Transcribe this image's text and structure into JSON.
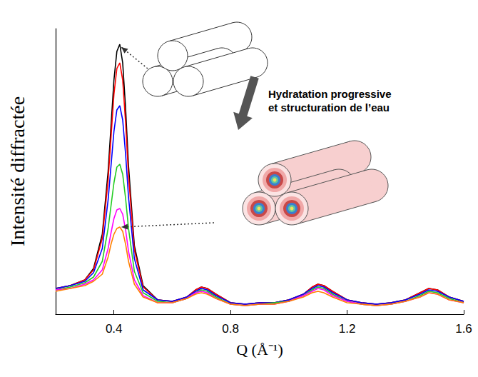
{
  "chart_data": {
    "type": "line",
    "x_label": "Q (Å⁻¹)",
    "y_label": "Intensité diffractée",
    "annotations": [
      "Hydratation progressive et structuration de l’eau"
    ],
    "x": [
      0.2,
      0.25,
      0.3,
      0.33,
      0.36,
      0.38,
      0.39,
      0.4,
      0.41,
      0.42,
      0.43,
      0.44,
      0.45,
      0.47,
      0.5,
      0.55,
      0.6,
      0.65,
      0.68,
      0.7,
      0.72,
      0.75,
      0.8,
      0.85,
      0.9,
      0.95,
      1.0,
      1.05,
      1.08,
      1.1,
      1.12,
      1.15,
      1.2,
      1.25,
      1.3,
      1.35,
      1.4,
      1.45,
      1.48,
      1.51,
      1.55,
      1.6
    ],
    "series": [
      {
        "color": "#000000",
        "values": [
          9,
          10,
          12,
          16,
          28,
          50,
          66,
          82,
          92,
          94.5,
          88,
          72,
          52,
          24,
          10,
          5,
          4.5,
          6,
          8.5,
          9.5,
          9,
          7,
          4,
          3.5,
          4,
          4,
          5,
          7,
          9.5,
          10.5,
          10,
          8,
          5,
          4,
          3.5,
          4,
          5,
          7.5,
          9,
          8.5,
          6,
          4.5
        ]
      },
      {
        "color": "#ff0000",
        "values": [
          9,
          10,
          12,
          15.5,
          26.5,
          47,
          62,
          77,
          86,
          88,
          82,
          67,
          48.5,
          22.5,
          9.5,
          5,
          4.5,
          6,
          8.5,
          9.5,
          9,
          7,
          4,
          3.5,
          4,
          4,
          5,
          7,
          9.5,
          10.5,
          10,
          8,
          5,
          4,
          3.5,
          4,
          5,
          7.5,
          9,
          8.5,
          6,
          4.5
        ]
      },
      {
        "color": "#0000ff",
        "values": [
          9,
          10,
          11.5,
          14.5,
          23,
          40,
          52,
          64,
          71.5,
          73,
          68,
          56,
          41,
          19.5,
          8.5,
          5,
          4.5,
          6,
          8,
          9,
          8.5,
          6.5,
          4,
          3.5,
          4,
          4,
          5,
          7,
          9,
          10,
          9.5,
          7.5,
          5,
          4,
          3.5,
          4,
          5,
          7,
          8.5,
          8,
          6,
          4.5
        ]
      },
      {
        "color": "#22cc22",
        "values": [
          8.5,
          9.5,
          11,
          13,
          18.5,
          30,
          38,
          46,
          51.5,
          52.5,
          49,
          40.5,
          30,
          15,
          7.5,
          4.5,
          4,
          5.5,
          7.5,
          8.5,
          8,
          6,
          3.5,
          3,
          3.5,
          4,
          4.5,
          6.5,
          8.5,
          9.5,
          9,
          7,
          4.5,
          3.5,
          3,
          3.5,
          4.5,
          6.5,
          8,
          7.5,
          5.5,
          4
        ]
      },
      {
        "color": "#ff00ff",
        "values": [
          8.5,
          9,
          10.5,
          12,
          15.5,
          23,
          28.5,
          33.5,
          36.5,
          37,
          35,
          29.5,
          22,
          12,
          6.5,
          4,
          4,
          5.5,
          7.5,
          8,
          7.5,
          5.5,
          3.5,
          3,
          3.5,
          3.5,
          4.5,
          6.5,
          8,
          9,
          8.5,
          6.5,
          4.5,
          3.5,
          3,
          3.5,
          4.5,
          6,
          7.5,
          7,
          5,
          4
        ]
      },
      {
        "color": "#ff8000",
        "values": [
          8,
          9,
          10,
          11.5,
          14,
          20,
          24.5,
          28,
          30,
          30.5,
          29,
          24.5,
          18.5,
          10.5,
          6,
          4,
          4,
          5.5,
          7,
          7.5,
          7,
          5.5,
          3.5,
          3,
          3.5,
          3.5,
          4.5,
          6,
          7.5,
          8,
          7.5,
          6,
          4,
          3.5,
          3,
          3.5,
          4.5,
          6,
          7.5,
          7,
          5,
          4
        ]
      }
    ],
    "xlim": [
      0.2,
      1.6
    ],
    "xticks": [
      0.4,
      0.8,
      1.2,
      1.6
    ],
    "ylim": [
      0,
      100
    ],
    "tick_labels": "x",
    "grid": false
  }
}
